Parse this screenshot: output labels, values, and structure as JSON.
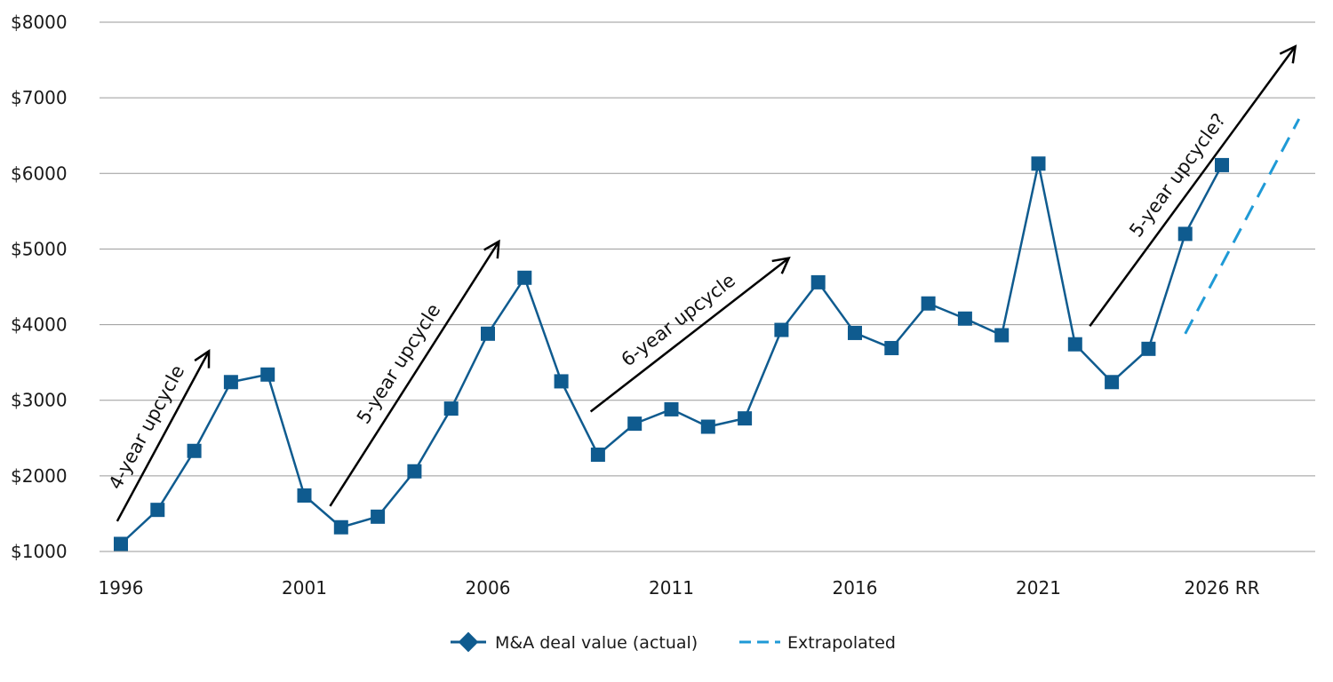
{
  "chart_data": {
    "type": "line",
    "x": [
      1996,
      1997,
      1998,
      1999,
      2000,
      2001,
      2002,
      2003,
      2004,
      2005,
      2006,
      2007,
      2008,
      2009,
      2010,
      2011,
      2012,
      2013,
      2014,
      2015,
      2016,
      2017,
      2018,
      2019,
      2020,
      2021,
      2022,
      2023,
      2024,
      2025,
      2026
    ],
    "xtick_labels": [
      "1996",
      "2001",
      "2006",
      "2011",
      "2016",
      "2021",
      "2026 RR"
    ],
    "xtick_values": [
      1996,
      2001,
      2006,
      2011,
      2016,
      2021,
      2026
    ],
    "ytick_labels": [
      "$1000",
      "$2000",
      "$3000",
      "$4000",
      "$5000",
      "$6000",
      "$7000",
      "$8000"
    ],
    "ytick_values": [
      1000,
      2000,
      3000,
      4000,
      5000,
      6000,
      7000,
      8000
    ],
    "ylim": [
      1000,
      8000
    ],
    "xlim": [
      1995.8,
      2028.3
    ],
    "grid": "horizontal",
    "series": [
      {
        "name": "M&A deal value (actual)",
        "color": "#0f5b8f",
        "marker": "square",
        "values": [
          1100,
          1550,
          2330,
          3240,
          3340,
          1740,
          1320,
          1460,
          2060,
          2890,
          3880,
          4620,
          3250,
          2280,
          2690,
          2880,
          2650,
          2760,
          3930,
          4560,
          3890,
          3690,
          4280,
          4080,
          3860,
          6130,
          3740,
          3240,
          3680,
          5200,
          6110
        ]
      },
      {
        "name": "Extrapolated",
        "color": "#1f9ad6",
        "style": "dashed",
        "x": [
          2025.0,
          2028.1
        ],
        "values": [
          3880,
          6720
        ]
      }
    ],
    "annotations": [
      {
        "text": "4-year upcycle",
        "arrow_from": [
          1995.9,
          1400
        ],
        "arrow_to": [
          1998.4,
          3650
        ]
      },
      {
        "text": "5-year upcycle",
        "arrow_from": [
          2001.7,
          1600
        ],
        "arrow_to": [
          2006.3,
          5100
        ]
      },
      {
        "text": "6-year upcycle",
        "arrow_from": [
          2008.8,
          2850
        ],
        "arrow_to": [
          2014.2,
          4880
        ]
      },
      {
        "text": "5-year upcycle?",
        "arrow_from": [
          2022.4,
          3980
        ],
        "arrow_to": [
          2028.0,
          7680
        ]
      }
    ],
    "legend": "bottom-center"
  }
}
